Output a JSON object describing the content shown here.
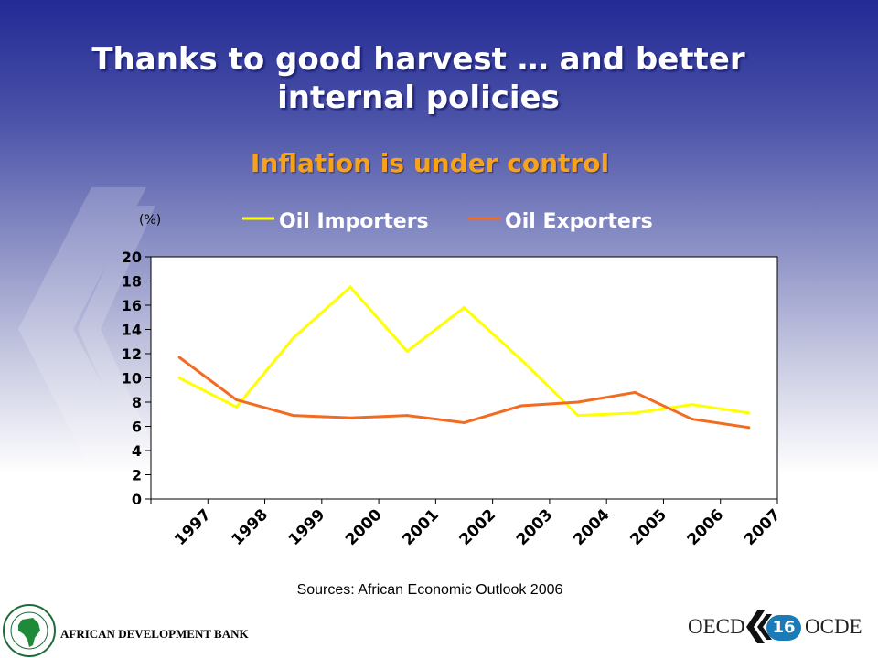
{
  "slide": {
    "title_line1": "Thanks to good harvest … and better",
    "title_line2": "internal policies",
    "subtitle": "Inflation is under control",
    "source": "Sources: African Economic Outlook 2006",
    "page_number": "16",
    "footer_left": "AFRICAN DEVELOPMENT BANK",
    "footer_oecd": "OECD",
    "footer_ocde": "OCDE"
  },
  "colors": {
    "title": "#ffffff",
    "subtitle": "#f7a21b",
    "oil_importers": "#ffff00",
    "oil_exporters": "#f26b21"
  },
  "chart_data": {
    "type": "line",
    "title": "",
    "unit_label": "(%)",
    "categories": [
      "1997",
      "1998",
      "1999",
      "2000",
      "2001",
      "2002",
      "2003",
      "2004",
      "2005",
      "2006",
      "2007"
    ],
    "ylim": [
      0,
      20
    ],
    "yticks": [
      0,
      2,
      4,
      6,
      8,
      10,
      12,
      14,
      16,
      18,
      20
    ],
    "grid": false,
    "legend_position": "top",
    "series": [
      {
        "name": "Oil Importers",
        "color": "#ffff00",
        "values": [
          10.0,
          7.6,
          13.3,
          17.5,
          12.2,
          15.8,
          11.5,
          6.9,
          7.1,
          7.8,
          7.1
        ]
      },
      {
        "name": "Oil Exporters",
        "color": "#f26b21",
        "values": [
          11.7,
          8.2,
          6.9,
          6.7,
          6.9,
          6.3,
          7.7,
          8.0,
          8.8,
          6.6,
          5.9
        ]
      }
    ]
  }
}
